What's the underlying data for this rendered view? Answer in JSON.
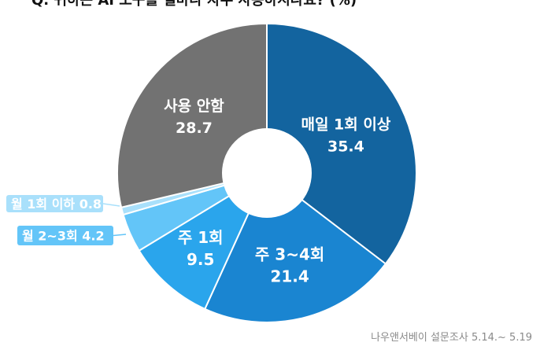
{
  "chart_data": {
    "type": "pie",
    "variant": "donut",
    "title": "Q. 귀하는 AI 도구를 얼마나 자주 사용하시나요? (%)",
    "source": "나우앤서베이 설문조사 5.14.~ 5.19",
    "slices": [
      {
        "label": "매일 1회 이상",
        "value": 35.4,
        "value_text": "35.4",
        "color": "#13649f"
      },
      {
        "label": "주 3~4회",
        "value": 21.4,
        "value_text": "21.4",
        "color": "#1a85d1"
      },
      {
        "label": "주 1회",
        "value": 9.5,
        "value_text": "9.5",
        "color": "#2aa5ec"
      },
      {
        "label": "월 2~3회",
        "value": 4.2,
        "value_text": "4.2",
        "color": "#63c5f8"
      },
      {
        "label": "월 1회 이하",
        "value": 0.8,
        "value_text": "0.8",
        "color": "#a9e0fb"
      },
      {
        "label": "사용 안함",
        "value": 28.7,
        "value_text": "28.7",
        "color": "#727272"
      }
    ]
  }
}
